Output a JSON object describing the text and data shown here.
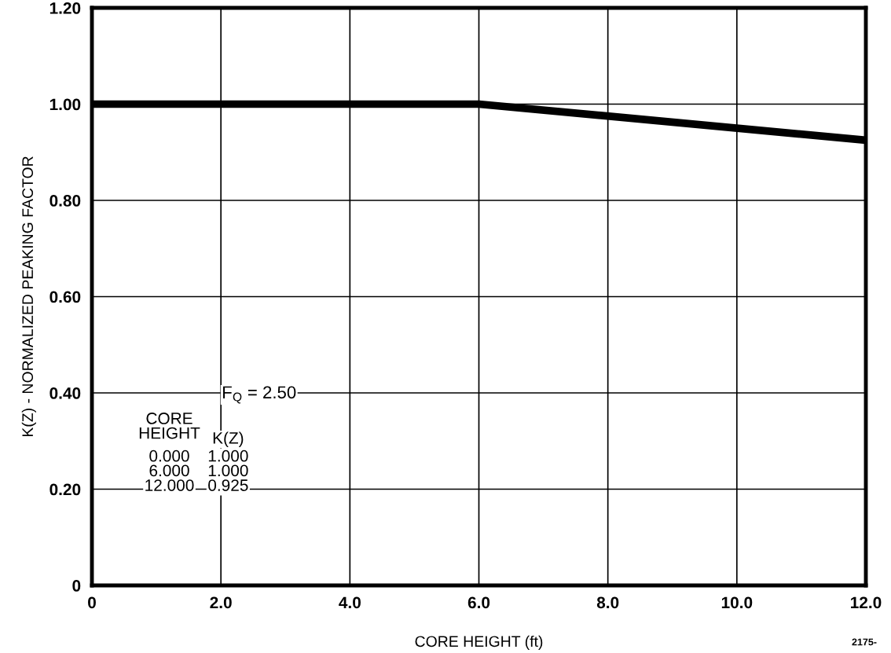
{
  "chart_data": {
    "type": "line",
    "xlabel": "CORE HEIGHT (ft)",
    "ylabel": "K(Z) - NORMALIZED PEAKING FACTOR",
    "x": [
      0,
      6,
      12
    ],
    "series": [
      {
        "color": "#000000",
        "values": [
          1.0,
          1.0,
          0.925
        ]
      }
    ],
    "xlim": [
      0,
      12
    ],
    "xticks": [
      0,
      {
        "value": 2,
        "label": "2.0"
      },
      {
        "value": 4,
        "label": "4.0"
      },
      {
        "value": 6,
        "label": "6.0"
      },
      {
        "value": 8,
        "label": "8.0"
      },
      {
        "value": 10,
        "label": "10.0"
      },
      {
        "value": 12,
        "label": "12.0"
      }
    ],
    "ylim": [
      0,
      1.2
    ],
    "yticks": [
      0,
      {
        "value": 0.2,
        "label": "0.20"
      },
      {
        "value": 0.4,
        "label": "0.40"
      },
      {
        "value": 0.6,
        "label": "0.60"
      },
      {
        "value": 0.8,
        "label": "0.80"
      },
      {
        "value": 1.0,
        "label": "1.00"
      },
      {
        "value": 1.2,
        "label": "1.20"
      }
    ],
    "grid": true,
    "marker": "none",
    "line_style": "solid",
    "annotations": [
      "F$_{Q}$ = 2.50",
      "CORE\nHEIGHT",
      "K(Z)",
      "0.000\n6.000\n12.000",
      "1.000\n1.000\n0.925",
      "2175-"
    ]
  }
}
